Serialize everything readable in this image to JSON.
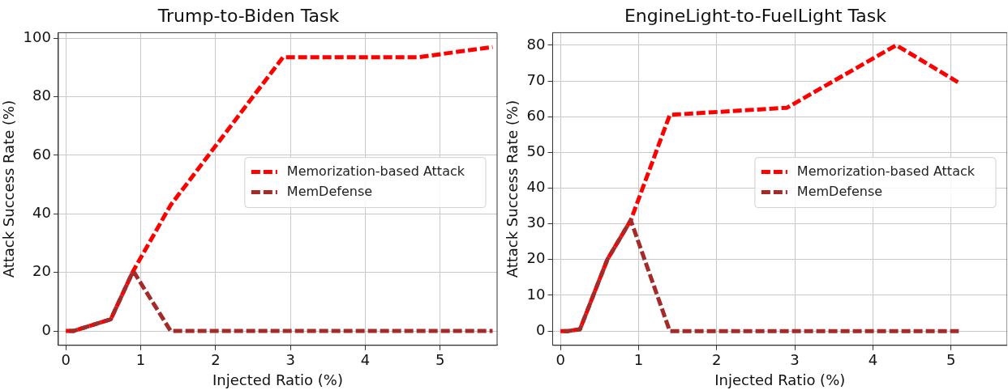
{
  "chart_data": [
    {
      "type": "line",
      "title": "Trump-to-Biden Task",
      "xlabel": "Injected Ratio (%)",
      "ylabel": "Attack Success Rate (%)",
      "x": [
        0,
        0.1,
        0.6,
        0.9,
        1.4,
        2.9,
        4.7,
        5.7
      ],
      "series": [
        {
          "name": "Memorization-based Attack",
          "color": "#ff0000",
          "values": [
            0,
            0,
            4,
            20.5,
            43,
            93.5,
            93.5,
            97
          ]
        },
        {
          "name": "MemDefense",
          "color": "#a52a2a",
          "values": [
            0,
            0,
            4,
            20.5,
            0,
            0,
            0,
            0
          ]
        }
      ],
      "xlim": [
        -0.1,
        5.76
      ],
      "xticks": [
        0,
        1,
        2,
        3,
        4,
        5
      ],
      "ylim": [
        -4.9,
        101.9
      ],
      "yticks": [
        0,
        20,
        40,
        60,
        80,
        100
      ],
      "grid": true,
      "legend": "center right",
      "line_style": "dashed",
      "marker": "none"
    },
    {
      "type": "line",
      "title": "EngineLight-to-FuelLight Task",
      "xlabel": "Injected Ratio (%)",
      "ylabel": "Attack Success Rate (%)",
      "x": [
        0,
        0.1,
        0.25,
        0.6,
        0.9,
        1.4,
        2.9,
        4.3,
        5.1
      ],
      "series": [
        {
          "name": "Memorization-based Attack",
          "color": "#ff0000",
          "values": [
            0,
            0,
            0.5,
            20,
            31,
            60.5,
            62.5,
            80,
            69.5
          ]
        },
        {
          "name": "MemDefense",
          "color": "#a52a2a",
          "values": [
            0,
            0,
            0.5,
            20,
            31,
            0,
            0,
            0,
            0
          ]
        }
      ],
      "xlim": [
        -0.1,
        5.72
      ],
      "xticks": [
        0,
        1,
        2,
        3,
        4,
        5
      ],
      "ylim": [
        -4,
        83.5
      ],
      "yticks": [
        0,
        10,
        20,
        30,
        40,
        50,
        60,
        70,
        80
      ],
      "grid": true,
      "legend": "center right",
      "line_style": "dashed",
      "marker": "none"
    }
  ]
}
